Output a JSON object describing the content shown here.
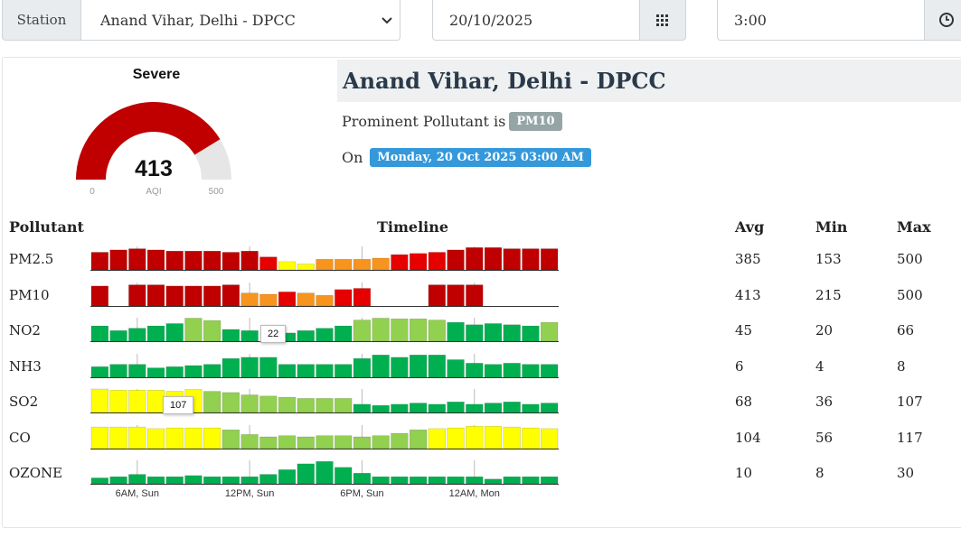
{
  "controls": {
    "station_label": "Station",
    "station_value": "Anand Vihar, Delhi - DPCC",
    "date_value": "20/10/2025",
    "time_value": "3:00"
  },
  "gauge": {
    "category": "Severe",
    "aqi": "413",
    "aqi_label": "AQI",
    "min": "0",
    "max": "500",
    "fill_fraction": 0.826,
    "fill_color": "#c00000",
    "track_color": "#e6e6e6"
  },
  "station": {
    "name": "Anand Vihar, Delhi - DPCC",
    "prominent_text": "Prominent Pollutant is",
    "prominent_value": "PM10",
    "on_text": "On",
    "datetime": "Monday, 20 Oct 2025 03:00 AM"
  },
  "colors": {
    "severe": "#c00000",
    "very_poor": "#e60000",
    "poor": "#f7941d",
    "moderate": "#ffff00",
    "satisfactory": "#92d050",
    "good": "#00b050",
    "badge_grey": "#95a5a6",
    "badge_blue": "#3498db"
  },
  "table": {
    "headers": {
      "pollutant": "Pollutant",
      "timeline": "Timeline",
      "avg": "Avg",
      "min": "Min",
      "max": "Max"
    },
    "rows": [
      {
        "name": "PM2.5",
        "avg": "385",
        "min": "153",
        "max": "500",
        "bars": [
          [
            0.75,
            "severe"
          ],
          [
            0.85,
            "severe"
          ],
          [
            0.9,
            "severe"
          ],
          [
            0.85,
            "severe"
          ],
          [
            0.8,
            "severe"
          ],
          [
            0.8,
            "severe"
          ],
          [
            0.8,
            "severe"
          ],
          [
            0.75,
            "severe"
          ],
          [
            0.8,
            "severe"
          ],
          [
            0.55,
            "very_poor"
          ],
          [
            0.35,
            "moderate"
          ],
          [
            0.25,
            "moderate"
          ],
          [
            0.45,
            "poor"
          ],
          [
            0.45,
            "poor"
          ],
          [
            0.45,
            "poor"
          ],
          [
            0.5,
            "poor"
          ],
          [
            0.65,
            "very_poor"
          ],
          [
            0.7,
            "very_poor"
          ],
          [
            0.75,
            "very_poor"
          ],
          [
            0.85,
            "severe"
          ],
          [
            0.95,
            "severe"
          ],
          [
            0.95,
            "severe"
          ],
          [
            0.9,
            "severe"
          ],
          [
            0.9,
            "severe"
          ],
          [
            0.9,
            "severe"
          ]
        ]
      },
      {
        "name": "PM10",
        "avg": "413",
        "min": "215",
        "max": "500",
        "bars": [
          [
            0.85,
            "severe"
          ],
          [
            0,
            "none"
          ],
          [
            0.9,
            "severe"
          ],
          [
            0.9,
            "severe"
          ],
          [
            0.85,
            "severe"
          ],
          [
            0.85,
            "severe"
          ],
          [
            0.85,
            "severe"
          ],
          [
            0.9,
            "severe"
          ],
          [
            0.55,
            "poor"
          ],
          [
            0.5,
            "poor"
          ],
          [
            0.6,
            "very_poor"
          ],
          [
            0.55,
            "poor"
          ],
          [
            0.45,
            "poor"
          ],
          [
            0.7,
            "very_poor"
          ],
          [
            0.75,
            "very_poor"
          ],
          [
            0,
            "none"
          ],
          [
            0,
            "none"
          ],
          [
            0,
            "none"
          ],
          [
            0.9,
            "severe"
          ],
          [
            0.9,
            "severe"
          ],
          [
            0.9,
            "severe"
          ],
          [
            0,
            "none"
          ],
          [
            0,
            "none"
          ],
          [
            0,
            "none"
          ],
          [
            0,
            "none"
          ]
        ]
      },
      {
        "name": "NO2",
        "avg": "45",
        "min": "20",
        "max": "66",
        "bars": [
          [
            0.65,
            "good"
          ],
          [
            0.45,
            "good"
          ],
          [
            0.55,
            "good"
          ],
          [
            0.65,
            "good"
          ],
          [
            0.75,
            "good"
          ],
          [
            0.98,
            "satisfactory"
          ],
          [
            0.88,
            "satisfactory"
          ],
          [
            0.5,
            "good"
          ],
          [
            0.45,
            "good"
          ],
          [
            0,
            "none"
          ],
          [
            0.35,
            "good"
          ],
          [
            0.45,
            "good"
          ],
          [
            0.55,
            "good"
          ],
          [
            0.65,
            "good"
          ],
          [
            0.9,
            "satisfactory"
          ],
          [
            0.98,
            "satisfactory"
          ],
          [
            0.95,
            "satisfactory"
          ],
          [
            0.95,
            "satisfactory"
          ],
          [
            0.9,
            "satisfactory"
          ],
          [
            0.8,
            "good"
          ],
          [
            0.7,
            "good"
          ],
          [
            0.75,
            "good"
          ],
          [
            0.7,
            "good"
          ],
          [
            0.65,
            "good"
          ],
          [
            0.8,
            "satisfactory"
          ]
        ]
      },
      {
        "name": "NH3",
        "avg": "6",
        "min": "4",
        "max": "8",
        "bars": [
          [
            0.45,
            "good"
          ],
          [
            0.55,
            "good"
          ],
          [
            0.55,
            "good"
          ],
          [
            0.4,
            "good"
          ],
          [
            0.45,
            "good"
          ],
          [
            0.5,
            "good"
          ],
          [
            0.55,
            "good"
          ],
          [
            0.8,
            "good"
          ],
          [
            0.85,
            "good"
          ],
          [
            0.85,
            "good"
          ],
          [
            0.55,
            "good"
          ],
          [
            0.55,
            "good"
          ],
          [
            0.55,
            "good"
          ],
          [
            0.55,
            "good"
          ],
          [
            0.8,
            "good"
          ],
          [
            0.95,
            "good"
          ],
          [
            0.85,
            "good"
          ],
          [
            0.95,
            "good"
          ],
          [
            0.95,
            "good"
          ],
          [
            0.75,
            "good"
          ],
          [
            0.6,
            "good"
          ],
          [
            0.55,
            "good"
          ],
          [
            0.6,
            "good"
          ],
          [
            0.55,
            "good"
          ],
          [
            0.55,
            "good"
          ]
        ]
      },
      {
        "name": "SO2",
        "avg": "68",
        "min": "36",
        "max": "107",
        "bars": [
          [
            1.0,
            "moderate"
          ],
          [
            0.95,
            "moderate"
          ],
          [
            0.95,
            "moderate"
          ],
          [
            0.95,
            "moderate"
          ],
          [
            0.9,
            "moderate"
          ],
          [
            0.98,
            "moderate"
          ],
          [
            0.9,
            "satisfactory"
          ],
          [
            0.85,
            "satisfactory"
          ],
          [
            0.75,
            "satisfactory"
          ],
          [
            0.7,
            "satisfactory"
          ],
          [
            0.65,
            "satisfactory"
          ],
          [
            0.6,
            "satisfactory"
          ],
          [
            0.6,
            "satisfactory"
          ],
          [
            0.6,
            "satisfactory"
          ],
          [
            0.35,
            "good"
          ],
          [
            0.3,
            "good"
          ],
          [
            0.35,
            "good"
          ],
          [
            0.4,
            "good"
          ],
          [
            0.35,
            "good"
          ],
          [
            0.45,
            "good"
          ],
          [
            0.35,
            "good"
          ],
          [
            0.4,
            "good"
          ],
          [
            0.45,
            "good"
          ],
          [
            0.35,
            "good"
          ],
          [
            0.4,
            "good"
          ]
        ]
      },
      {
        "name": "CO",
        "avg": "104",
        "min": "56",
        "max": "117",
        "bars": [
          [
            0.92,
            "moderate"
          ],
          [
            0.92,
            "moderate"
          ],
          [
            0.92,
            "moderate"
          ],
          [
            0.85,
            "moderate"
          ],
          [
            0.88,
            "moderate"
          ],
          [
            0.88,
            "moderate"
          ],
          [
            0.88,
            "moderate"
          ],
          [
            0.8,
            "satisfactory"
          ],
          [
            0.6,
            "satisfactory"
          ],
          [
            0.5,
            "satisfactory"
          ],
          [
            0.55,
            "satisfactory"
          ],
          [
            0.5,
            "satisfactory"
          ],
          [
            0.55,
            "satisfactory"
          ],
          [
            0.55,
            "satisfactory"
          ],
          [
            0.5,
            "satisfactory"
          ],
          [
            0.55,
            "satisfactory"
          ],
          [
            0.65,
            "satisfactory"
          ],
          [
            0.8,
            "satisfactory"
          ],
          [
            0.85,
            "moderate"
          ],
          [
            0.88,
            "moderate"
          ],
          [
            0.95,
            "moderate"
          ],
          [
            0.95,
            "moderate"
          ],
          [
            0.92,
            "moderate"
          ],
          [
            0.88,
            "moderate"
          ],
          [
            0.85,
            "moderate"
          ]
        ]
      },
      {
        "name": "OZONE",
        "avg": "10",
        "min": "8",
        "max": "30",
        "bars": [
          [
            0.25,
            "good"
          ],
          [
            0.3,
            "good"
          ],
          [
            0.4,
            "good"
          ],
          [
            0.3,
            "good"
          ],
          [
            0.3,
            "good"
          ],
          [
            0.35,
            "good"
          ],
          [
            0.3,
            "good"
          ],
          [
            0.3,
            "good"
          ],
          [
            0.3,
            "good"
          ],
          [
            0.4,
            "good"
          ],
          [
            0.6,
            "good"
          ],
          [
            0.85,
            "good"
          ],
          [
            0.95,
            "good"
          ],
          [
            0.7,
            "good"
          ],
          [
            0.45,
            "good"
          ],
          [
            0.3,
            "good"
          ],
          [
            0.3,
            "good"
          ],
          [
            0.3,
            "good"
          ],
          [
            0.3,
            "good"
          ],
          [
            0.3,
            "good"
          ],
          [
            0.3,
            "good"
          ],
          [
            0.2,
            "good"
          ],
          [
            0.3,
            "good"
          ],
          [
            0.3,
            "good"
          ],
          [
            0.3,
            "good"
          ]
        ]
      }
    ],
    "x_ticks": [
      "6AM, Sun",
      "12PM, Sun",
      "6PM, Sun",
      "12AM, Mon"
    ]
  },
  "tooltips": [
    {
      "row": "NO2",
      "value": "22"
    },
    {
      "row": "SO2",
      "value": "107"
    }
  ]
}
